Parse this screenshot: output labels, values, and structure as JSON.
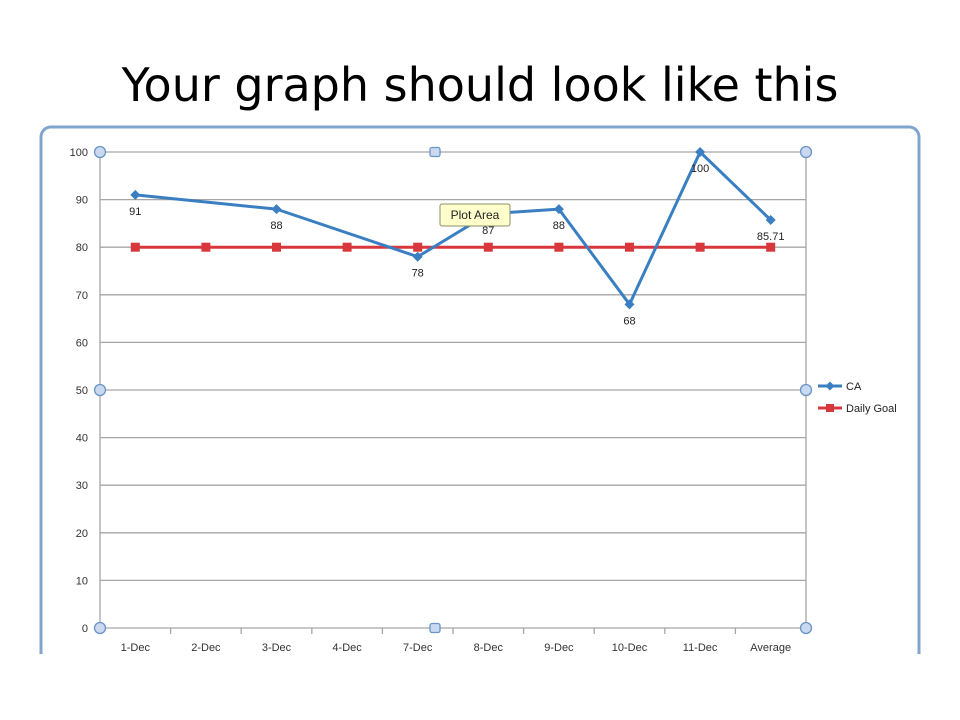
{
  "slide": {
    "title": "Your graph should look like this"
  },
  "tooltip": {
    "text": "Plot Area"
  },
  "colors": {
    "ca": "#3A7FC1",
    "goal": "#D8373C",
    "grid": "#A6A6A6",
    "frame_border": "#7FA6D0",
    "tooltip_bg": "#FFFFCC"
  },
  "chart_data": {
    "type": "line",
    "categories": [
      "1-Dec",
      "2-Dec",
      "3-Dec",
      "4-Dec",
      "7-Dec",
      "8-Dec",
      "9-Dec",
      "10-Dec",
      "11-Dec",
      "Average"
    ],
    "series": [
      {
        "name": "CA",
        "marker": "diamond",
        "values": [
          91,
          null,
          88,
          null,
          78,
          87,
          88,
          68,
          100,
          85.71
        ],
        "labels": [
          "91",
          "",
          "88",
          "",
          "78",
          "87",
          "88",
          "68",
          "100",
          "85.71"
        ]
      },
      {
        "name": "Daily Goal",
        "marker": "square",
        "values": [
          80,
          80,
          80,
          80,
          80,
          80,
          80,
          80,
          80,
          80
        ]
      }
    ],
    "ylim": [
      0,
      100
    ],
    "yticks": [
      0,
      10,
      20,
      30,
      40,
      50,
      60,
      70,
      80,
      90,
      100
    ],
    "grid": true,
    "legend": "right"
  }
}
